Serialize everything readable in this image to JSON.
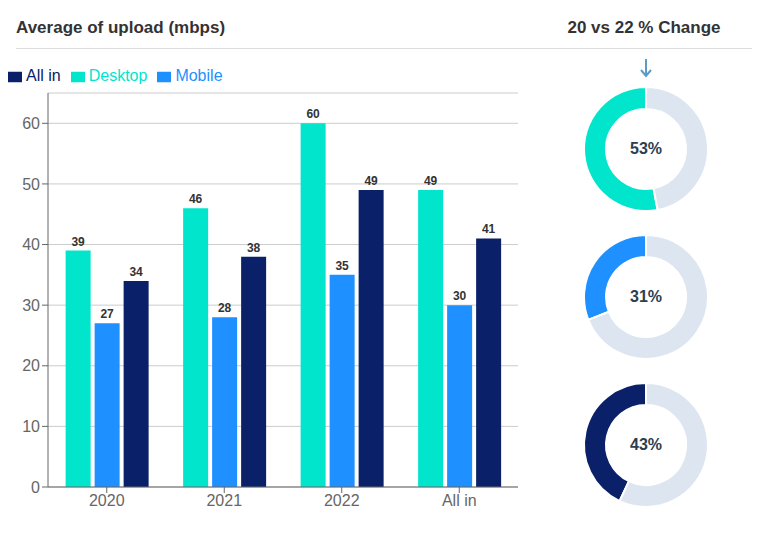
{
  "chart_data": [
    {
      "type": "bar",
      "title": "Average of upload (mbps)",
      "categories": [
        "2020",
        "2021",
        "2022",
        "All in"
      ],
      "series": [
        {
          "name": "Desktop",
          "color": "#00E5CC",
          "values": [
            39,
            46,
            60,
            49
          ]
        },
        {
          "name": "Mobile",
          "color": "#1E90FF",
          "values": [
            27,
            28,
            35,
            30
          ]
        },
        {
          "name": "All in",
          "color": "#0A2169",
          "values": [
            34,
            38,
            49,
            41
          ]
        }
      ],
      "ylim": [
        0,
        65
      ],
      "yticks": [
        0,
        10,
        20,
        30,
        40,
        50,
        60
      ],
      "grid": true,
      "legend": "upper left",
      "data_labels": true
    },
    {
      "type": "donut",
      "title": "20 vs 22 % Change",
      "values": [
        53,
        47
      ],
      "colors": [
        "#00E5CC",
        "#DDE6F0"
      ],
      "value_labels": [
        "53%",
        null
      ]
    },
    {
      "type": "donut",
      "values": [
        31,
        69
      ],
      "colors": [
        "#1E90FF",
        "#DDE6F0"
      ],
      "value_labels": [
        "31%",
        null
      ]
    },
    {
      "type": "donut",
      "values": [
        43,
        57
      ],
      "colors": [
        "#0A2169",
        "#DDE6F0"
      ],
      "value_labels": [
        "43%",
        null
      ]
    }
  ]
}
